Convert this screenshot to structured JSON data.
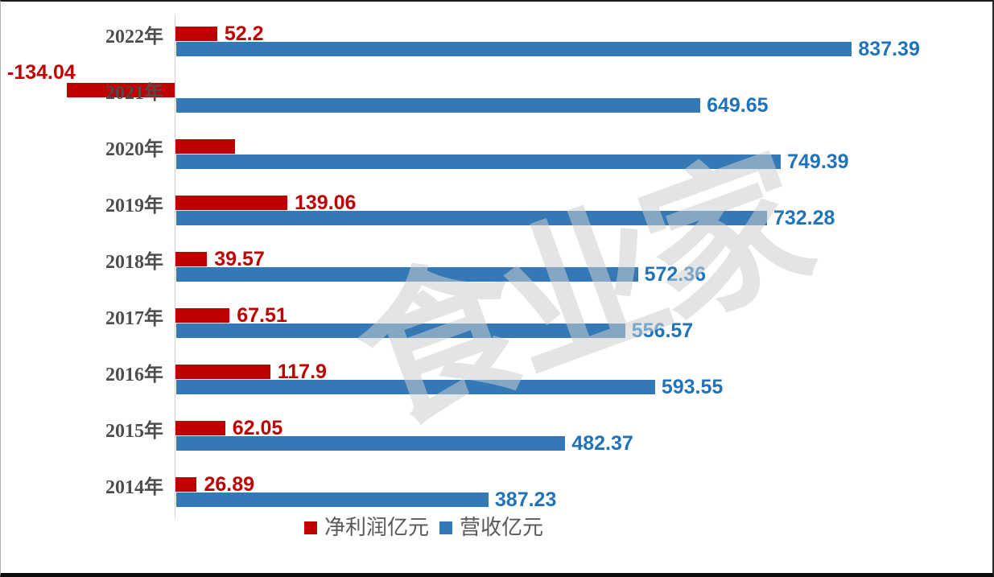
{
  "watermark": {
    "text": "食业家"
  },
  "legend": {
    "items": [
      {
        "label": "净利润亿元",
        "color": "#c00000"
      },
      {
        "label": "营收亿元",
        "color": "#3478b6"
      }
    ]
  },
  "chart_data": {
    "type": "bar",
    "orientation": "horizontal",
    "unit": "亿元",
    "categories": [
      "2022年",
      "2021年",
      "2020年",
      "2019年",
      "2018年",
      "2017年",
      "2016年",
      "2015年",
      "2014年"
    ],
    "series": [
      {
        "name": "净利润亿元",
        "bar_color": "#c00000",
        "label_color": "#c00000",
        "values": [
          52.2,
          -134.04,
          74.26,
          139.06,
          39.57,
          67.51,
          117.9,
          62.05,
          26.89
        ],
        "labels": [
          "52.2",
          "-134.04",
          "",
          "139.06",
          "39.57",
          "67.51",
          "117.9",
          "62.05",
          "26.89"
        ]
      },
      {
        "name": "营收亿元",
        "bar_color": "#3478b6",
        "label_color": "#2173b9",
        "values": [
          837.39,
          649.65,
          749.39,
          732.28,
          572.36,
          556.57,
          593.55,
          482.37,
          387.23
        ],
        "labels": [
          "837.39",
          "649.65",
          "749.39",
          "732.28",
          "572.36",
          "556.57",
          "593.55",
          "482.37",
          "387.23"
        ]
      }
    ],
    "value_axis": {
      "origin_at_zero": true,
      "gridlines": false,
      "tick_labels_visible": false
    },
    "legend_position": "bottom",
    "notes": "2020 net-profit bar is drawn without a visible data label; value estimated from bar length."
  }
}
